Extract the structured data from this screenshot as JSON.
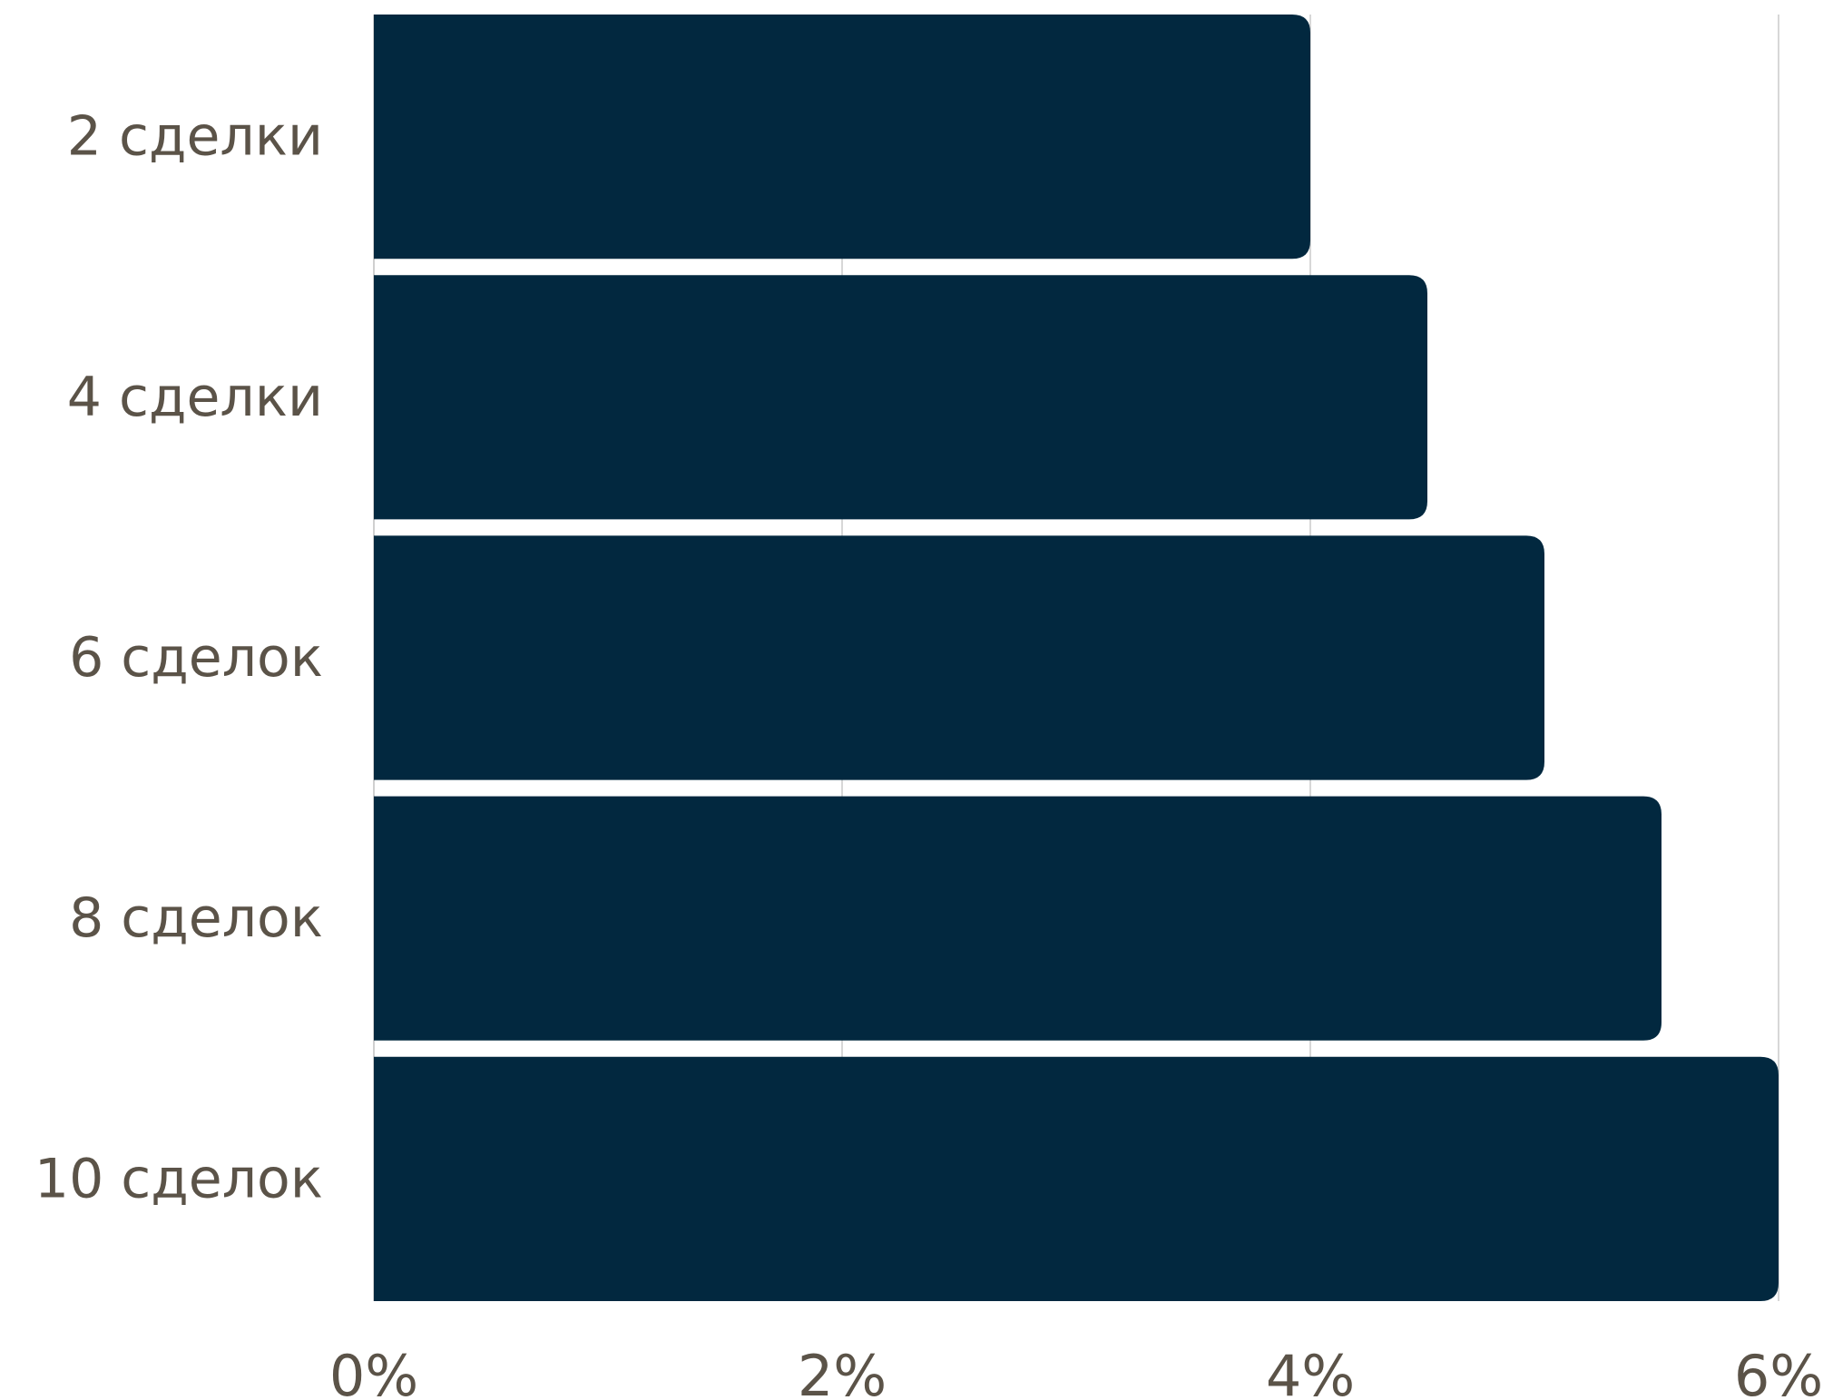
{
  "chart_data": {
    "type": "bar",
    "orientation": "horizontal",
    "categories": [
      "2 сделки",
      "4 сделки",
      "6 сделок",
      "8 сделок",
      "10 сделок"
    ],
    "values": [
      4.0,
      4.5,
      5.0,
      5.5,
      6.0
    ],
    "unit": "%",
    "xlim": [
      0,
      6
    ],
    "x_ticks": [
      0,
      2,
      4,
      6
    ],
    "x_tick_labels": [
      "0%",
      "2%",
      "4%",
      "6%"
    ],
    "grid": "vertical",
    "legend": "none",
    "title": "",
    "xlabel": "",
    "ylabel": "",
    "colors": {
      "bar": "#02283f",
      "label": "#5b5348",
      "grid": "#d7d7d7"
    }
  }
}
